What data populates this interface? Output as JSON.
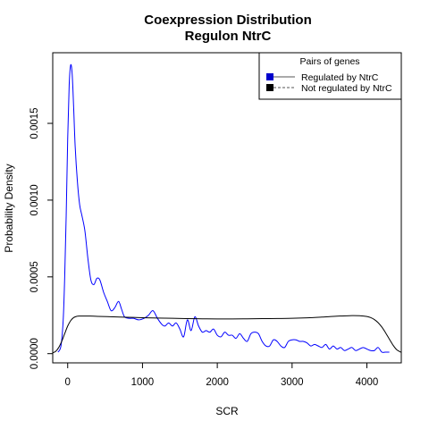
{
  "chart_data": {
    "type": "line",
    "title": "Coexpression Distribution",
    "subtitle": "Regulon NtrC",
    "xlabel": "SCR",
    "ylabel": "Probability Density",
    "xlim": [
      -200,
      4460
    ],
    "ylim": [
      -6e-05,
      0.00196
    ],
    "x_ticks": [
      0,
      1000,
      2000,
      3000,
      4000
    ],
    "x_tick_labels": [
      "0",
      "1000",
      "2000",
      "3000",
      "4000"
    ],
    "y_ticks": [
      0,
      0.0005,
      0.001,
      0.0015
    ],
    "y_tick_labels": [
      "0.0000",
      "0.0005",
      "0.0010",
      "0.0015"
    ],
    "grid": false,
    "legend": {
      "title": "Pairs of genes",
      "position": "top-right",
      "entries": [
        {
          "label": "Regulated by  NtrC",
          "color": "#0000ff",
          "swatch_color": "#0000cc",
          "line_style": "solid"
        },
        {
          "label": "Not regulated by  NtrC",
          "color": "#000000",
          "swatch_color": "#000000",
          "line_style": "dashed"
        }
      ]
    },
    "series": [
      {
        "name": "Regulated by  NtrC",
        "color": "#0000ff",
        "x": [
          -130,
          -90,
          -60,
          -40,
          -20,
          0,
          20,
          40,
          60,
          80,
          100,
          130,
          160,
          190,
          230,
          270,
          310,
          350,
          390,
          430,
          480,
          530,
          580,
          630,
          680,
          720,
          760,
          820,
          880,
          950,
          1020,
          1080,
          1140,
          1200,
          1260,
          1300,
          1350,
          1400,
          1450,
          1500,
          1550,
          1600,
          1650,
          1700,
          1750,
          1800,
          1850,
          1900,
          1950,
          2000,
          2050,
          2100,
          2150,
          2200,
          2250,
          2300,
          2350,
          2400,
          2450,
          2500,
          2550,
          2600,
          2650,
          2700,
          2750,
          2800,
          2850,
          2900,
          2950,
          3000,
          3050,
          3100,
          3150,
          3200,
          3250,
          3300,
          3350,
          3400,
          3450,
          3500,
          3550,
          3600,
          3650,
          3700,
          3750,
          3800,
          3850,
          3900,
          3950,
          4000,
          4050,
          4100,
          4150,
          4200,
          4250,
          4300
        ],
        "y": [
          1e-05,
          5e-05,
          0.00022,
          0.0005,
          0.0009,
          0.0014,
          0.00175,
          0.00188,
          0.00182,
          0.0016,
          0.00135,
          0.00112,
          0.00097,
          0.0009,
          0.0008,
          0.00062,
          0.00048,
          0.00045,
          0.00049,
          0.00048,
          0.0004,
          0.00034,
          0.00028,
          0.0003,
          0.00034,
          0.00029,
          0.00024,
          0.00023,
          0.00023,
          0.00022,
          0.00023,
          0.00025,
          0.00028,
          0.00023,
          0.00019,
          0.00018,
          0.0002,
          0.00018,
          0.0002,
          0.00016,
          0.00011,
          0.00022,
          0.00015,
          0.00024,
          0.00018,
          0.00014,
          0.00015,
          0.00014,
          0.00016,
          0.00012,
          0.00011,
          0.00014,
          0.00012,
          0.00012,
          0.0001,
          0.00013,
          0.0001,
          8e-05,
          0.00013,
          0.00014,
          0.00013,
          8e-05,
          5e-05,
          5e-05,
          9e-05,
          8e-05,
          5e-05,
          4e-05,
          8e-05,
          9e-05,
          9e-05,
          8e-05,
          8e-05,
          7e-05,
          5e-05,
          6e-05,
          5e-05,
          4e-05,
          6e-05,
          3e-05,
          5e-05,
          3e-05,
          4e-05,
          2e-05,
          3e-05,
          4e-05,
          2e-05,
          3e-05,
          4e-05,
          3e-05,
          2e-05,
          2e-05,
          4e-05,
          1e-05,
          1e-05,
          1e-05
        ]
      },
      {
        "name": "Not regulated by  NtrC",
        "color": "#000000",
        "x": [
          -200,
          -160,
          -120,
          -80,
          -40,
          0,
          40,
          80,
          120,
          160,
          200,
          300,
          400,
          600,
          800,
          1000,
          1200,
          1400,
          1600,
          1800,
          2000,
          2200,
          2400,
          2600,
          2800,
          3000,
          3200,
          3400,
          3600,
          3800,
          3900,
          4000,
          4050,
          4100,
          4150,
          4200,
          4250,
          4300,
          4350,
          4400,
          4460
        ],
        "y": [
          5e-06,
          1.5e-05,
          4e-05,
          8e-05,
          0.00013,
          0.00018,
          0.000215,
          0.000235,
          0.000243,
          0.000245,
          0.000245,
          0.000245,
          0.000243,
          0.00024,
          0.000237,
          0.000234,
          0.000232,
          0.00023,
          0.000228,
          0.000227,
          0.000226,
          0.000226,
          0.000227,
          0.000228,
          0.000229,
          0.00023,
          0.000233,
          0.000238,
          0.000244,
          0.000248,
          0.000247,
          0.000242,
          0.000235,
          0.000222,
          0.000202,
          0.000173,
          0.000136,
          9.5e-05,
          5.5e-05,
          2.5e-05,
          8e-06
        ]
      }
    ]
  }
}
